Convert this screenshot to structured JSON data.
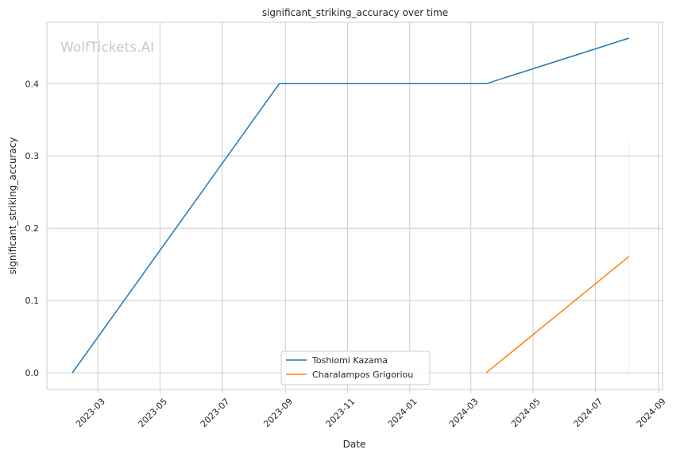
{
  "chart_data": {
    "type": "line",
    "title": "significant_striking_accuracy over time",
    "xlabel": "Date",
    "ylabel": "significant_striking_accuracy",
    "watermark": "WolfTickets.AI",
    "xlim": [
      "2023-01-10",
      "2024-09-05"
    ],
    "ylim": [
      -0.023,
      0.485
    ],
    "x_ticks": [
      "2023-03-01",
      "2023-05-01",
      "2023-07-01",
      "2023-09-01",
      "2023-11-01",
      "2024-01-01",
      "2024-03-01",
      "2024-05-01",
      "2024-07-01",
      "2024-09-01"
    ],
    "x_tick_labels": [
      "2023-03",
      "2023-05",
      "2023-07",
      "2023-09",
      "2023-11",
      "2024-01",
      "2024-03",
      "2024-05",
      "2024-07",
      "2024-09"
    ],
    "y_ticks": [
      0.0,
      0.1,
      0.2,
      0.3,
      0.4
    ],
    "y_tick_labels": [
      "0.0",
      "0.1",
      "0.2",
      "0.3",
      "0.4"
    ],
    "grid": true,
    "legend_position": "bottom-center",
    "series": [
      {
        "name": "Toshiomi Kazama",
        "color": "#1f77b4",
        "x": [
          "2023-02-04",
          "2023-08-26",
          "2024-03-16",
          "2024-08-03"
        ],
        "y": [
          0.0,
          0.4,
          0.4,
          0.463
        ]
      },
      {
        "name": "Charalampos Grigoriou",
        "color": "#ff7f0e",
        "x": [
          "2024-03-16",
          "2024-08-03"
        ],
        "y": [
          0.0,
          0.161
        ]
      }
    ],
    "error_bars": [
      {
        "series": "Charalampos Grigoriou",
        "x": "2024-08-03",
        "low": 0.0,
        "high": 0.322,
        "color": "#ff7f0e"
      }
    ]
  }
}
